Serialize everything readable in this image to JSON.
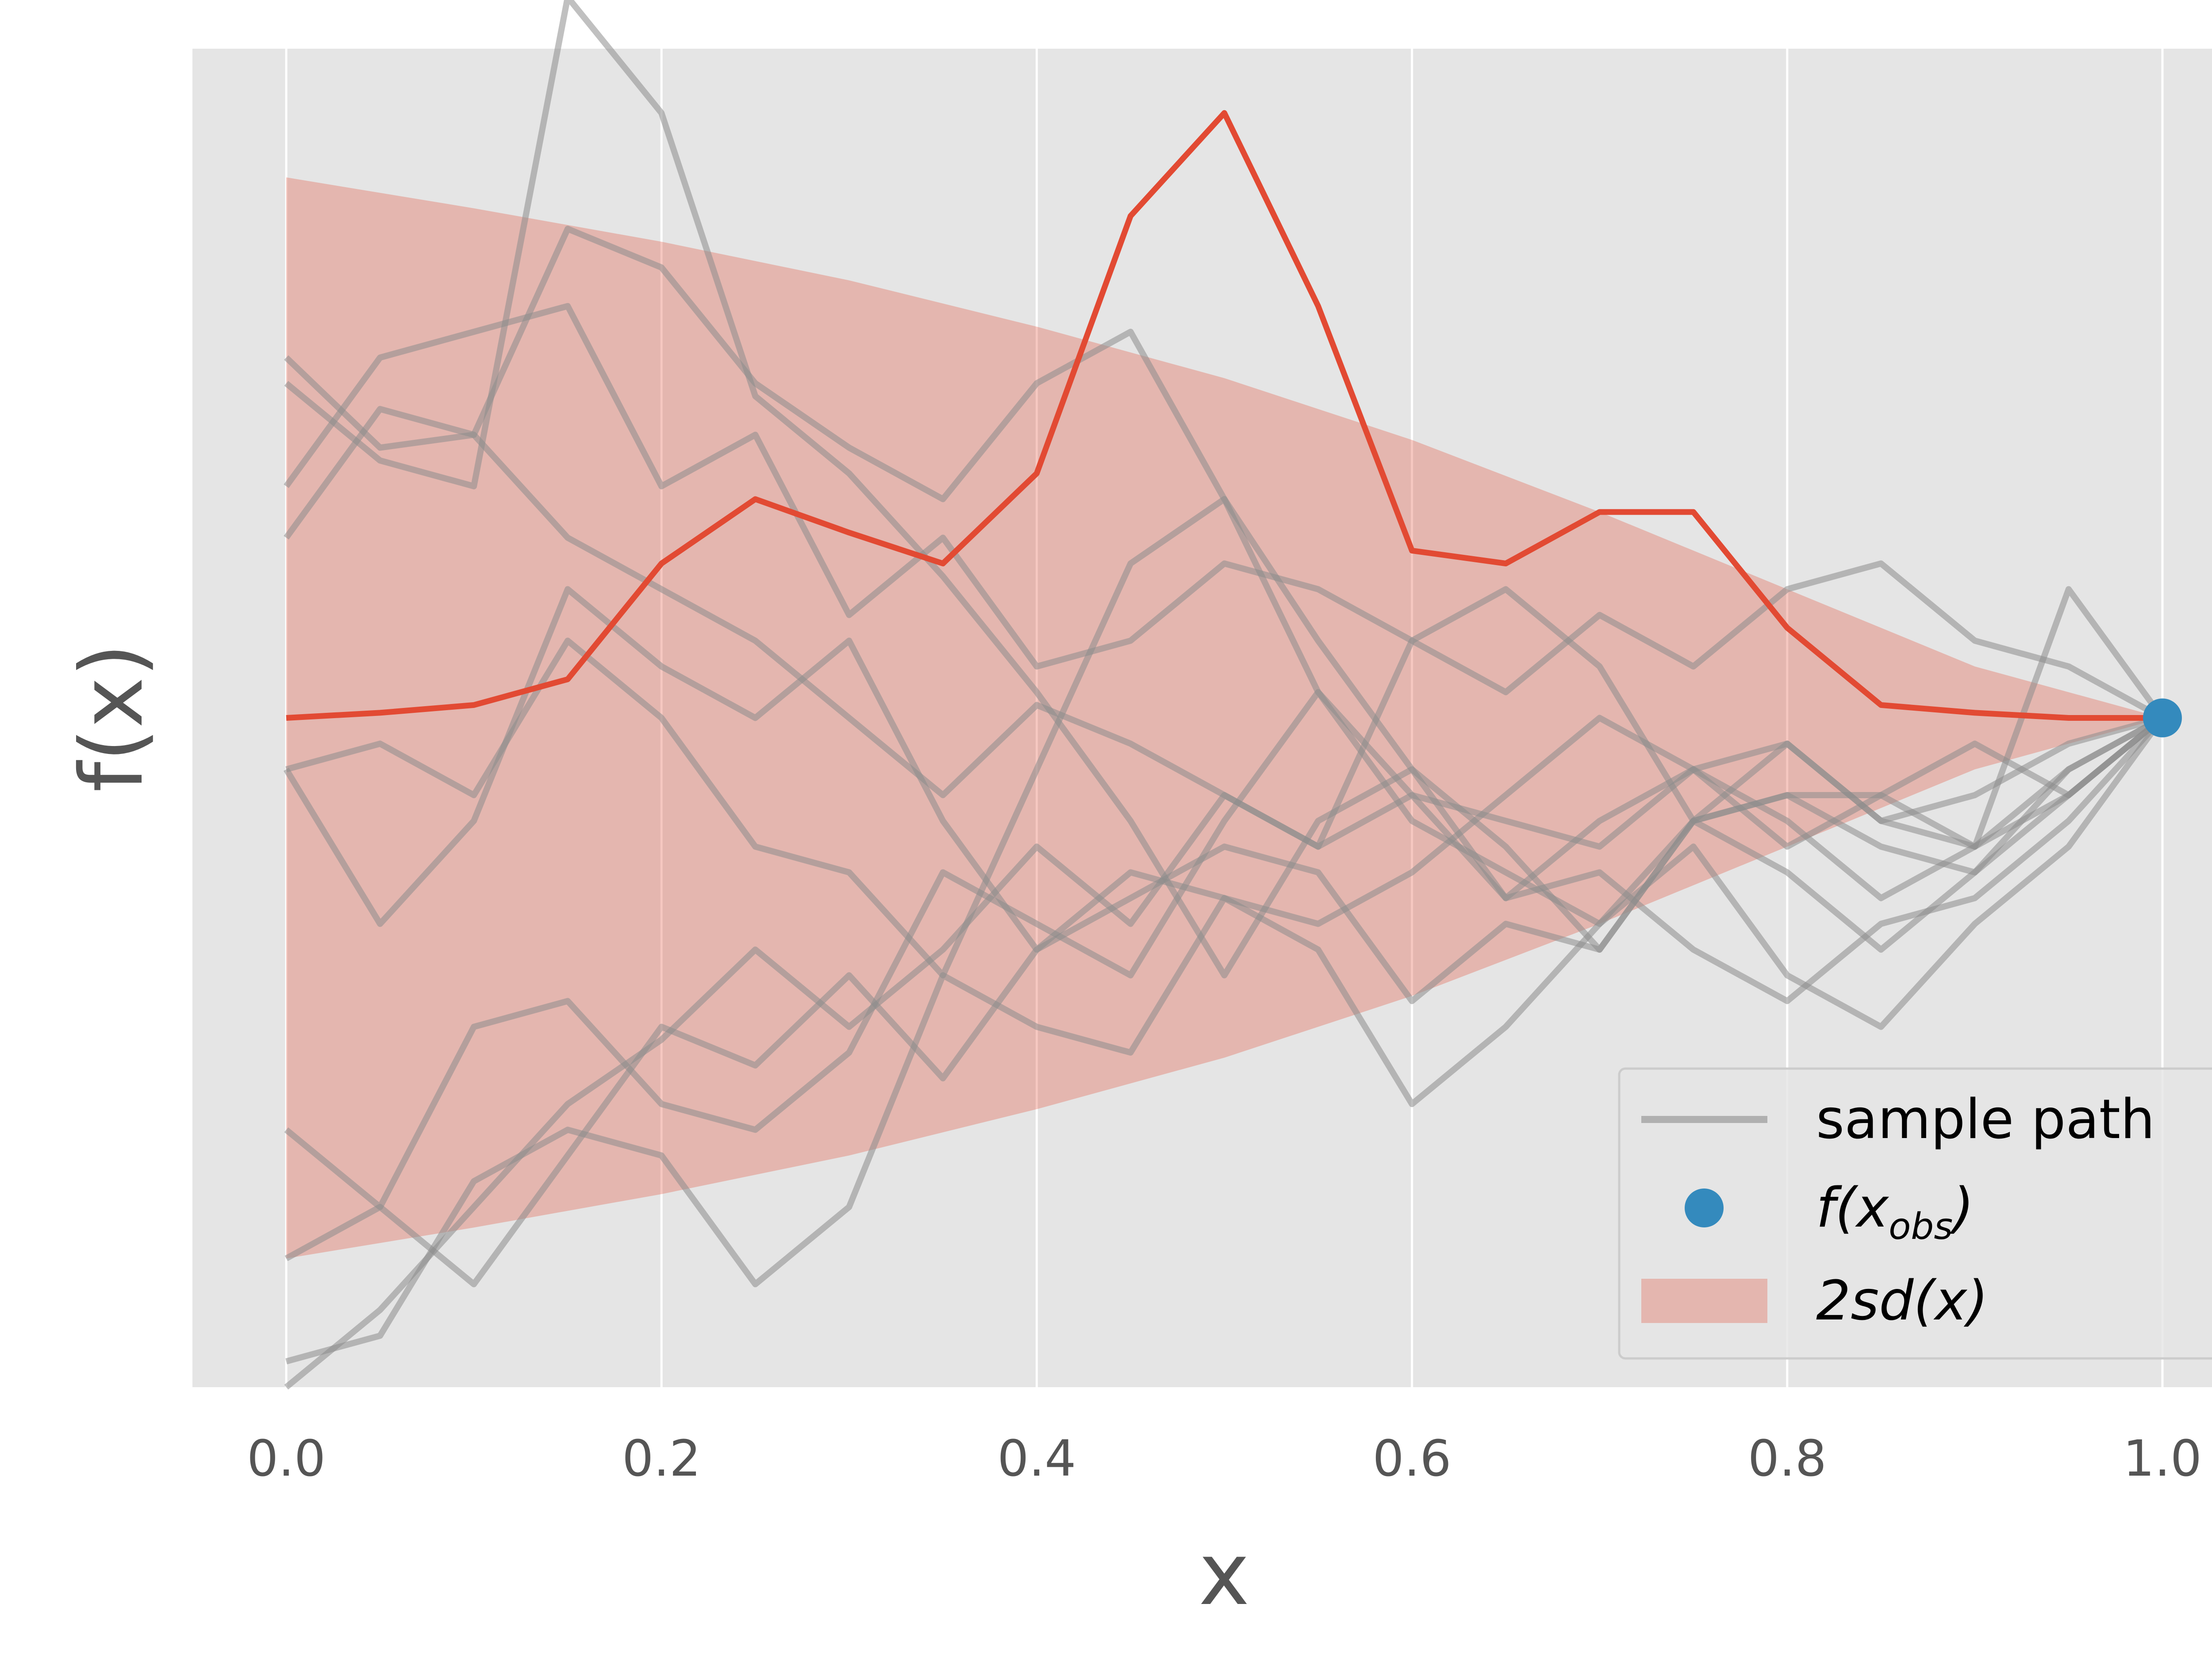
{
  "chart_data": {
    "type": "line",
    "title": "",
    "xlabel": "x",
    "ylabel": "f(x)",
    "xlim": [
      -0.05,
      1.05
    ],
    "ylim": [
      -2.6,
      2.6
    ],
    "xticks": [
      0.0,
      0.2,
      0.4,
      0.6,
      0.8,
      1.0
    ],
    "xtick_labels": [
      "0.0",
      "0.2",
      "0.4",
      "0.6",
      "0.8",
      "1.0"
    ],
    "yticks_shown": false,
    "grid": true,
    "legend_position": "lower-right",
    "band": {
      "label": "2sd(x)",
      "x": [
        0.0,
        0.1,
        0.2,
        0.3,
        0.4,
        0.5,
        0.6,
        0.7,
        0.8,
        0.9,
        1.0
      ],
      "upper": [
        2.1,
        1.98,
        1.85,
        1.7,
        1.52,
        1.32,
        1.08,
        0.8,
        0.5,
        0.2,
        0.0
      ],
      "lower": [
        -2.1,
        -1.98,
        -1.85,
        -1.7,
        -1.52,
        -1.32,
        -1.08,
        -0.8,
        -0.5,
        -0.2,
        0.0
      ]
    },
    "mean": {
      "x": [
        0.0,
        0.05,
        0.1,
        0.15,
        0.2,
        0.25,
        0.3,
        0.35,
        0.4,
        0.45,
        0.5,
        0.55,
        0.6,
        0.65,
        0.7,
        0.75,
        0.8,
        0.85,
        0.9,
        0.95,
        1.0
      ],
      "y": [
        0.0,
        0.02,
        0.05,
        0.15,
        0.6,
        0.85,
        0.72,
        0.6,
        0.95,
        1.95,
        2.35,
        1.6,
        0.65,
        0.6,
        0.8,
        0.8,
        0.35,
        0.05,
        0.02,
        0.0,
        0.0
      ]
    },
    "observed": {
      "label": "f(x_obs)",
      "x": [
        1.0
      ],
      "y": [
        0.0
      ]
    },
    "sample_paths_label": "sample path",
    "sample_paths": [
      {
        "name": "",
        "x": [
          0.0,
          0.05,
          0.1,
          0.15,
          0.2,
          0.25,
          0.3,
          0.35,
          0.4,
          0.45,
          0.5,
          0.55,
          0.6,
          0.65,
          0.7,
          0.75,
          0.8,
          0.85,
          0.9,
          0.95,
          1.0
        ],
        "y": [
          1.4,
          1.05,
          1.1,
          1.9,
          1.75,
          1.3,
          1.05,
          0.85,
          1.3,
          1.5,
          0.85,
          0.3,
          -0.2,
          -0.5,
          -0.9,
          -0.4,
          -0.6,
          -0.9,
          -0.6,
          -0.3,
          0.0
        ]
      },
      {
        "name": "",
        "x": [
          0.0,
          0.05,
          0.1,
          0.15,
          0.2,
          0.25,
          0.3,
          0.35,
          0.4,
          0.45,
          0.5,
          0.55,
          0.6,
          0.65,
          0.7,
          0.75,
          0.8,
          0.85,
          0.9,
          0.95,
          1.0
        ],
        "y": [
          1.3,
          1.0,
          0.9,
          2.8,
          2.35,
          1.25,
          0.95,
          0.55,
          0.1,
          -0.4,
          -1.0,
          -0.4,
          -0.2,
          -0.7,
          -0.6,
          -0.9,
          -1.1,
          -0.8,
          -0.7,
          -0.4,
          0.0
        ]
      },
      {
        "name": "",
        "x": [
          0.0,
          0.05,
          0.1,
          0.15,
          0.2,
          0.25,
          0.3,
          0.35,
          0.4,
          0.45,
          0.5,
          0.55,
          0.6,
          0.65,
          0.7,
          0.75,
          0.8,
          0.85,
          0.9,
          0.95,
          1.0
        ],
        "y": [
          0.7,
          1.2,
          1.1,
          0.7,
          0.5,
          0.3,
          0.0,
          -0.3,
          0.05,
          -0.1,
          -0.3,
          -0.5,
          -0.3,
          -0.7,
          -0.4,
          -0.2,
          -0.4,
          -0.7,
          -0.5,
          -0.2,
          0.0
        ]
      },
      {
        "name": "",
        "x": [
          0.0,
          0.05,
          0.1,
          0.15,
          0.2,
          0.25,
          0.3,
          0.35,
          0.4,
          0.45,
          0.5,
          0.55,
          0.6,
          0.65,
          0.7,
          0.75,
          0.8,
          0.85,
          0.9,
          0.95,
          1.0
        ],
        "y": [
          -0.2,
          -0.1,
          -0.3,
          0.3,
          0.0,
          -0.5,
          -0.6,
          -1.0,
          -0.2,
          0.6,
          0.85,
          0.1,
          -0.3,
          -0.4,
          -0.5,
          -0.2,
          -0.1,
          -0.4,
          -0.3,
          -0.1,
          0.0
        ]
      },
      {
        "name": "",
        "x": [
          0.0,
          0.05,
          0.1,
          0.15,
          0.2,
          0.25,
          0.3,
          0.35,
          0.4,
          0.45,
          0.5,
          0.55,
          0.6,
          0.65,
          0.7,
          0.75,
          0.8,
          0.85,
          0.9,
          0.95,
          1.0
        ],
        "y": [
          -0.2,
          -0.8,
          -0.4,
          0.5,
          0.2,
          0.0,
          0.3,
          -0.4,
          -0.9,
          -0.6,
          -0.7,
          -0.8,
          -0.6,
          -0.3,
          0.0,
          -0.2,
          -0.5,
          -0.3,
          -0.1,
          -0.3,
          0.0
        ]
      },
      {
        "name": "",
        "x": [
          0.0,
          0.05,
          0.1,
          0.15,
          0.2,
          0.25,
          0.3,
          0.35,
          0.4,
          0.45,
          0.5,
          0.55,
          0.6,
          0.65,
          0.7,
          0.75,
          0.8,
          0.85,
          0.9,
          0.95,
          1.0
        ],
        "y": [
          -1.6,
          -1.9,
          -1.2,
          -1.1,
          -1.5,
          -1.6,
          -1.3,
          -0.6,
          -0.8,
          -1.0,
          -0.4,
          0.1,
          -0.4,
          -0.6,
          -0.8,
          -0.5,
          -1.0,
          -1.2,
          -0.8,
          -0.5,
          0.0
        ]
      },
      {
        "name": "",
        "x": [
          0.0,
          0.05,
          0.1,
          0.15,
          0.2,
          0.25,
          0.3,
          0.35,
          0.4,
          0.45,
          0.5,
          0.55,
          0.6,
          0.65,
          0.7,
          0.75,
          0.8,
          0.85,
          0.9,
          0.95,
          1.0
        ],
        "y": [
          -2.1,
          -1.9,
          -2.2,
          -1.7,
          -1.2,
          -1.35,
          -1.0,
          -1.4,
          -0.9,
          -0.7,
          -0.5,
          -0.6,
          -1.1,
          -0.8,
          -0.9,
          -0.4,
          -0.3,
          -0.5,
          -0.6,
          -0.2,
          0.0
        ]
      },
      {
        "name": "",
        "x": [
          0.0,
          0.05,
          0.1,
          0.15,
          0.2,
          0.25,
          0.3,
          0.35,
          0.4,
          0.45,
          0.5,
          0.55,
          0.6,
          0.65,
          0.7,
          0.75,
          0.8,
          0.85,
          0.9,
          0.95,
          1.0
        ],
        "y": [
          -2.6,
          -2.3,
          -1.9,
          -1.5,
          -1.25,
          -0.9,
          -1.2,
          -0.9,
          -0.5,
          -0.8,
          -0.3,
          -0.5,
          0.3,
          0.5,
          0.2,
          -0.4,
          -0.3,
          -0.3,
          -0.5,
          0.5,
          0.0
        ]
      },
      {
        "name": "",
        "x": [
          0.0,
          0.05,
          0.1,
          0.15,
          0.2,
          0.25,
          0.3,
          0.35,
          0.4,
          0.45,
          0.5,
          0.55,
          0.6,
          0.65,
          0.7,
          0.75,
          0.8,
          0.85,
          0.9,
          0.95,
          1.0
        ],
        "y": [
          -2.5,
          -2.4,
          -1.8,
          -1.6,
          -1.7,
          -2.2,
          -1.9,
          -1.0,
          -1.2,
          -1.3,
          -0.7,
          -0.9,
          -1.5,
          -1.2,
          -0.8,
          -0.4,
          -0.1,
          -0.4,
          -0.5,
          -0.3,
          0.0
        ]
      },
      {
        "name": "",
        "x": [
          0.0,
          0.05,
          0.1,
          0.15,
          0.2,
          0.25,
          0.3,
          0.35,
          0.4,
          0.45,
          0.5,
          0.55,
          0.6,
          0.65,
          0.7,
          0.75,
          0.8,
          0.85,
          0.9,
          0.95,
          1.0
        ],
        "y": [
          0.9,
          1.4,
          1.5,
          1.6,
          0.9,
          1.1,
          0.4,
          0.7,
          0.2,
          0.3,
          0.6,
          0.5,
          0.3,
          0.1,
          0.4,
          0.2,
          0.5,
          0.6,
          0.3,
          0.2,
          0.0
        ]
      }
    ]
  },
  "legend": {
    "sample_path_label": "sample path",
    "observed_label_main": "f(x",
    "observed_label_sub": "obs",
    "observed_label_close": ")",
    "band_label": "2sd(x)"
  },
  "colors": {
    "panel_bg": "#E5E5E5",
    "grid": "#FFFFFF",
    "mean_line": "#E24A33",
    "band_fill": "#E24A33",
    "sample_path": "#8C8C8C",
    "observed_point": "#348ABD",
    "tick_text": "#555555"
  }
}
